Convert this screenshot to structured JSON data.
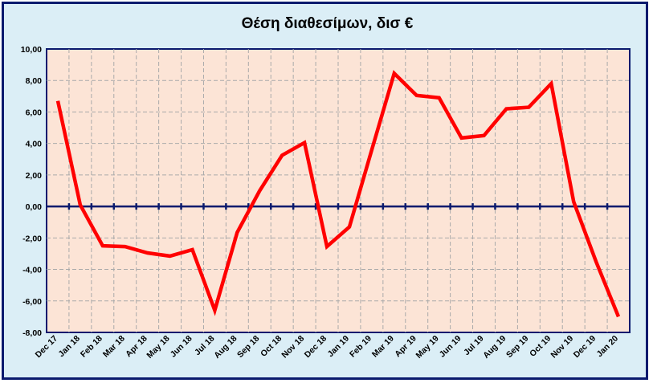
{
  "chart_data": {
    "type": "line",
    "title": "Θέση διαθεσίμων, δισ €",
    "xlabel": "",
    "ylabel": "",
    "ylim": [
      -8,
      10
    ],
    "yticks": [
      "-8,00",
      "-6,00",
      "-4,00",
      "-2,00",
      "0,00",
      "2,00",
      "4,00",
      "6,00",
      "8,00",
      "10,00"
    ],
    "grid": true,
    "legend": "none",
    "categories": [
      "Dec 17",
      "Jan 18",
      "Feb 18",
      "Mar 18",
      "Apr 18",
      "May 18",
      "Jun 18",
      "Jul 18",
      "Aug 18",
      "Sep 18",
      "Oct 18",
      "Nov 18",
      "Dec 18",
      "Jan 19",
      "Feb 19",
      "Mar 19",
      "Apr 19",
      "May 19",
      "Jun 19",
      "Jul 19",
      "Aug 19",
      "Sep 19",
      "Oct 19",
      "Nov 19",
      "Dec 19",
      "Jan 20"
    ],
    "series": [
      {
        "values": [
          6.7,
          0.1,
          -2.5,
          -2.55,
          -2.95,
          -3.15,
          -2.75,
          -6.6,
          -1.65,
          1.0,
          3.25,
          4.05,
          -2.55,
          -1.3,
          3.6,
          8.45,
          7.05,
          6.9,
          4.35,
          4.5,
          6.2,
          6.3,
          7.8,
          0.3,
          -3.5,
          -7.0
        ],
        "color": "#ff0000"
      }
    ],
    "colors": {
      "plot_background": "#fce4d6",
      "frame_background": "#dbeef6",
      "border": "#0a1a6e",
      "zero_line": "#0a1a6e",
      "series": "#ff0000",
      "grid": "#aaaaaa"
    }
  }
}
